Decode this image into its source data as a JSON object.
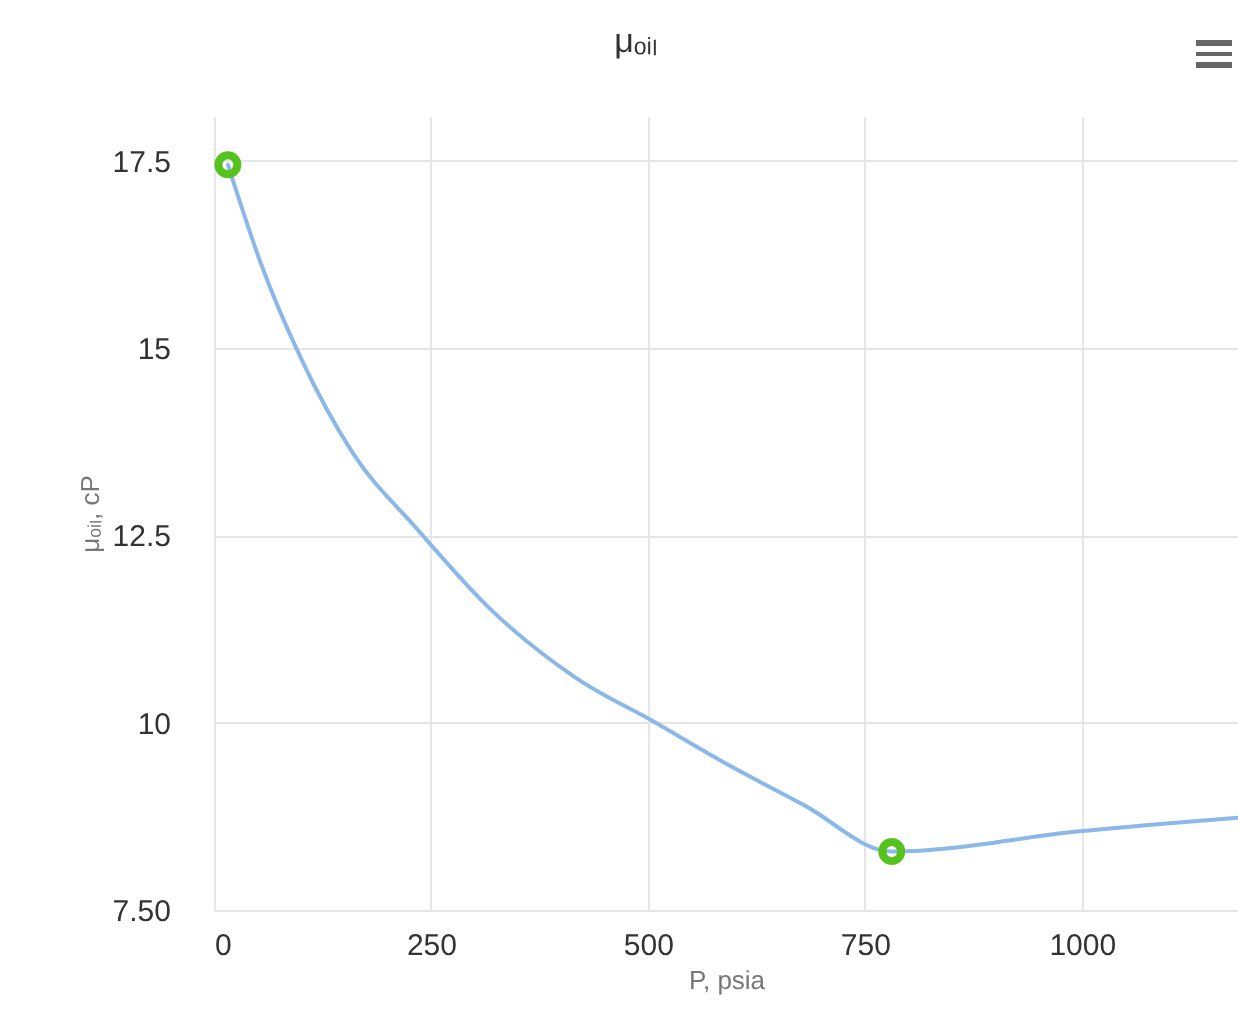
{
  "chart_data": {
    "type": "line",
    "title": "μₒᵢₗ",
    "xlabel": "P, psia",
    "ylabel": "μₒᵢₗ, cP",
    "xlim": [
      0,
      1180
    ],
    "ylim": [
      7.5,
      18.1
    ],
    "xticks": [
      0,
      250,
      500,
      750,
      1000
    ],
    "yticks": [
      {
        "value": 7.5,
        "label": "7.50"
      },
      10,
      12.5,
      15,
      17.5
    ],
    "grid": true,
    "line_style": "solid",
    "series": [
      {
        "type": "line",
        "color": "#8cb8e8",
        "marker": "none",
        "x": [
          16,
          55,
          100,
          160,
          233,
          320,
          417,
          509,
          583,
          680,
          781,
          998,
          1180
        ],
        "values": [
          17.45,
          16.1,
          14.87,
          13.6,
          12.6,
          11.5,
          10.6,
          10.0,
          9.5,
          8.9,
          8.28,
          8.55,
          8.73
        ]
      },
      {
        "type": "scatter",
        "color": "#55c21e",
        "marker": "circle",
        "x": [
          16,
          781
        ],
        "values": [
          17.45,
          8.28
        ]
      }
    ]
  }
}
